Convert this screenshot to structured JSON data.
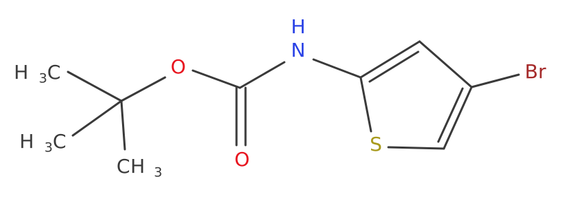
{
  "atoms": {
    "methyl_top": {
      "h": "H",
      "sub": "3",
      "c": "C"
    },
    "methyl_mid": {
      "h": "H",
      "sub": "3",
      "c": "C"
    },
    "methyl_bottom": {
      "c": "C",
      "h": "H",
      "sub": "3"
    },
    "ester_oxygen": "O",
    "carbonyl_oxygen": "O",
    "nitrogen": "N",
    "nitrogen_hydrogen": "H",
    "sulfur": "S",
    "bromine": "Br"
  }
}
